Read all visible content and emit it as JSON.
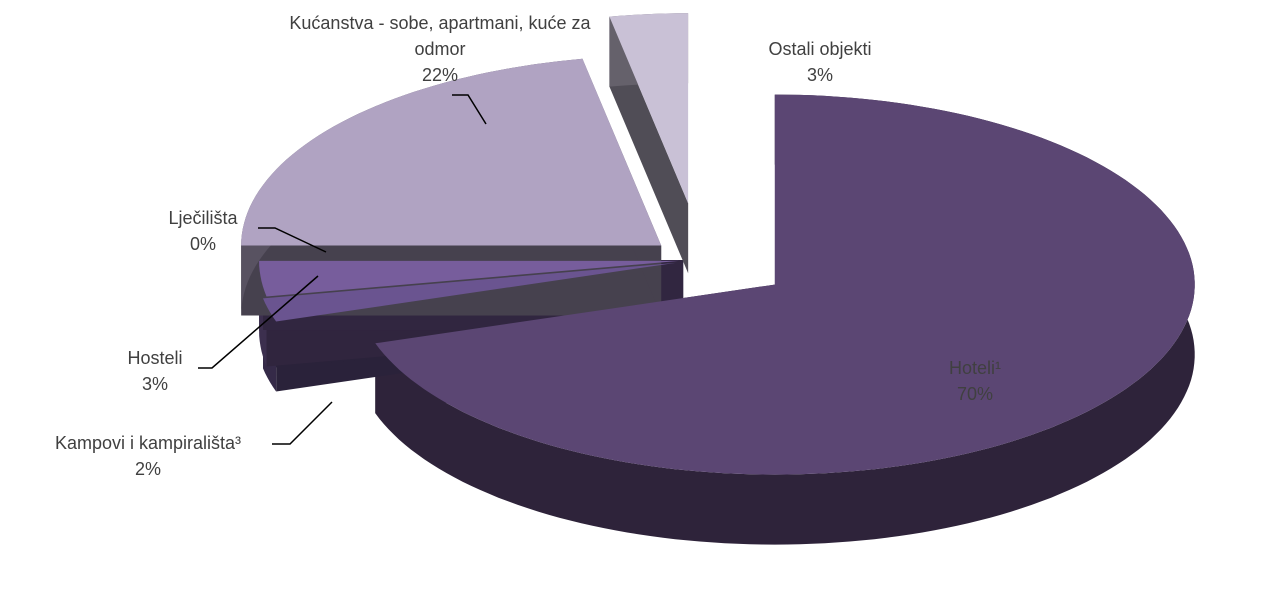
{
  "chart_data": {
    "type": "pie",
    "categories": [
      "Hoteli¹",
      "Kampovi i kampirališta³",
      "Hosteli",
      "Lječilišta",
      "Kućanstva - sobe, apartmani, kuće za odmor",
      "Ostali objekti"
    ],
    "values": [
      70,
      2,
      3,
      0,
      22,
      3
    ],
    "value_labels": [
      "70%",
      "2%",
      "3%",
      "0%",
      "22%",
      "3%"
    ],
    "colors": [
      "#5b4673",
      "#6a5490",
      "#775d9c",
      "#7a5ea0",
      "#b0a3c2",
      "#c9c1d6"
    ]
  }
}
